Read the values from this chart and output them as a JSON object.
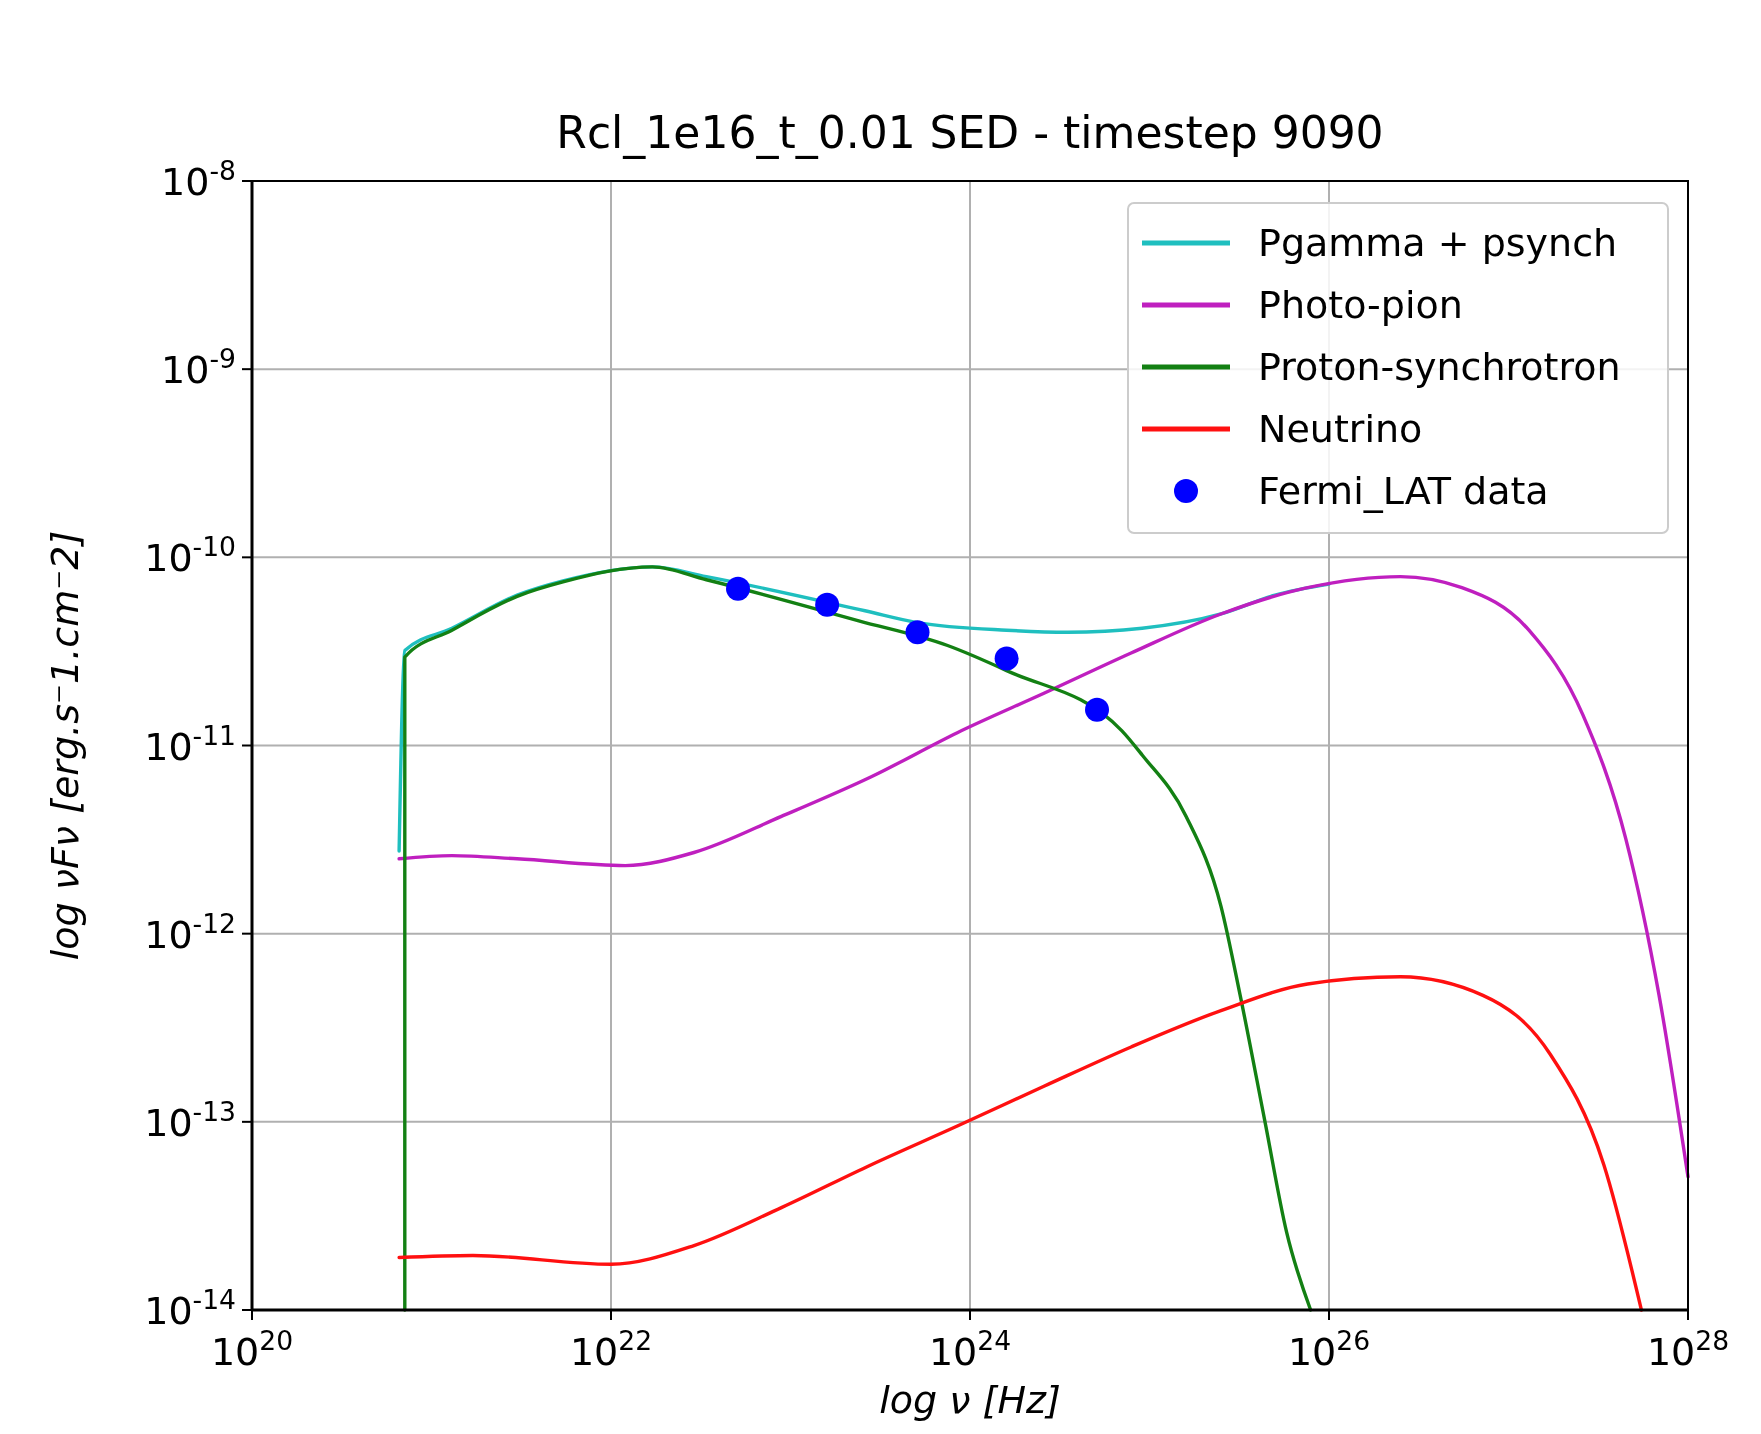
{
  "chart_data": {
    "type": "line",
    "title": "Rcl_1e16_t_0.01 SED - timestep 9090",
    "xlabel": "log ν [Hz]",
    "ylabel": "log νFν [erg.s⁻1.cm⁻2]",
    "log": "xy",
    "grid": true,
    "legend": "top right",
    "line_style": "solid",
    "marker": "none",
    "xlim": [
      1e+20,
      1e+28
    ],
    "xticks": [
      {
        "value": 1e+20,
        "label": "10$^{20}$"
      },
      {
        "value": 1e+22,
        "label": "10$^{22}$"
      },
      {
        "value": 1e+24,
        "label": "10$^{24}$"
      },
      {
        "value": 1e+26,
        "label": "10$^{26}$"
      },
      {
        "value": 1e+28,
        "label": "10$^{28}$"
      }
    ],
    "ylim": [
      1e-14,
      1e-08
    ],
    "yticks": [
      {
        "value": 1e-14,
        "label": "10$^{-14}$"
      },
      {
        "value": 1e-13,
        "label": "10$^{-13}$"
      },
      {
        "value": 1e-12,
        "label": "10$^{-12}$"
      },
      {
        "value": 1e-11,
        "label": "10$^{-11}$"
      },
      {
        "value": 1e-10,
        "label": "10$^{-10}$"
      },
      {
        "value": 1e-09,
        "label": "10$^{-9}$"
      },
      {
        "value": 1e-08,
        "label": "10$^{-8}$"
      }
    ],
    "series": [
      {
        "name": "Pgamma + psynch",
        "color": "#1fbfbf",
        "x": [
          6.6e+20,
          7.1e+20,
          1.3e+21,
          3e+21,
          5.4e+21,
          1.7e+22,
          3.4e+22,
          2.6e+23,
          5.1e+23,
          1.6e+24,
          3.5e+24,
          9.1e+24,
          2.5e+25,
          5e+25,
          1e+26
        ],
        "values": [
          2.75e-12,
          3.2e-11,
          4.2e-11,
          6.3e-11,
          7.5e-11,
          8.9e-11,
          7.9e-11,
          5.2e-11,
          4.5e-11,
          4.1e-11,
          4e-11,
          4.2e-11,
          5e-11,
          6.3e-11,
          7.2e-11
        ]
      },
      {
        "name": "Photo-pion",
        "color": "#bf1fbf",
        "x": [
          6.6e+20,
          1.3e+21,
          3e+21,
          1.2e+22,
          2.9e+22,
          8.9e+22,
          2.8e+23,
          8.5e+23,
          2.6e+24,
          7.9e+24,
          2.5e+25,
          7.6e+25,
          2.5e+26,
          5.5e+26,
          1.3e+27,
          2.6e+27,
          4.5e+27,
          6.9e+27,
          1e+28
        ],
        "values": [
          2.5e-12,
          2.6e-12,
          2.5e-12,
          2.3e-12,
          2.7e-12,
          4.2e-12,
          6.8e-12,
          1.17e-11,
          1.9e-11,
          3.1e-11,
          5e-11,
          6.9e-11,
          7.9e-11,
          6.9e-11,
          4.1e-11,
          1.45e-11,
          3.2e-12,
          4.7e-13,
          5.1e-14
        ]
      },
      {
        "name": "Proton-synchrotron",
        "color": "#138013",
        "x": [
          7.1e+20,
          7.1e+20,
          1.3e+21,
          3e+21,
          5.4e+21,
          1.7e+22,
          3.4e+22,
          2.4e+23,
          7.5e+23,
          1.6e+24,
          7e+24,
          9.1e+24,
          1.6e+25,
          2.5e+25,
          3.2e+25,
          4.4e+25,
          5.8e+25,
          7.9e+25
        ],
        "values": [
          1e-14,
          2.95e-11,
          4.1e-11,
          6.2e-11,
          7.4e-11,
          8.9e-11,
          7.6e-11,
          4.6e-11,
          3.4e-11,
          2.5e-11,
          1.2e-11,
          8.9e-12,
          4.2e-12,
          1.4e-12,
          4.7e-13,
          1e-13,
          2.6e-14,
          1e-14
        ]
      },
      {
        "name": "Neutrino",
        "color": "#ff1010",
        "x": [
          6.6e+20,
          1.7e+21,
          1e+22,
          2.9e+22,
          8.9e+22,
          2.8e+23,
          8.5e+23,
          2.6e+24,
          7.9e+24,
          2.5e+25,
          7.6e+25,
          2.5e+26,
          7.2e+26,
          1.7e+27,
          3.4e+27,
          5.5e+27
        ],
        "values": [
          1.9e-14,
          1.95e-14,
          1.75e-14,
          2.2e-14,
          3.5e-14,
          5.9e-14,
          9.5e-14,
          1.55e-13,
          2.5e-13,
          3.9e-13,
          5.4e-13,
          5.9e-13,
          4.7e-13,
          2.3e-13,
          5.9e-14,
          1e-14
        ]
      },
      {
        "name": "Fermi_LAT data",
        "type": "scatter",
        "marker": "circle",
        "color": "#0000ff",
        "x": [
          5.1e+22,
          1.6e+23,
          5.1e+23,
          1.6e+24,
          5.1e+24
        ],
        "values": [
          6.8e-11,
          5.6e-11,
          4e-11,
          2.9e-11,
          1.55e-11
        ]
      }
    ]
  }
}
